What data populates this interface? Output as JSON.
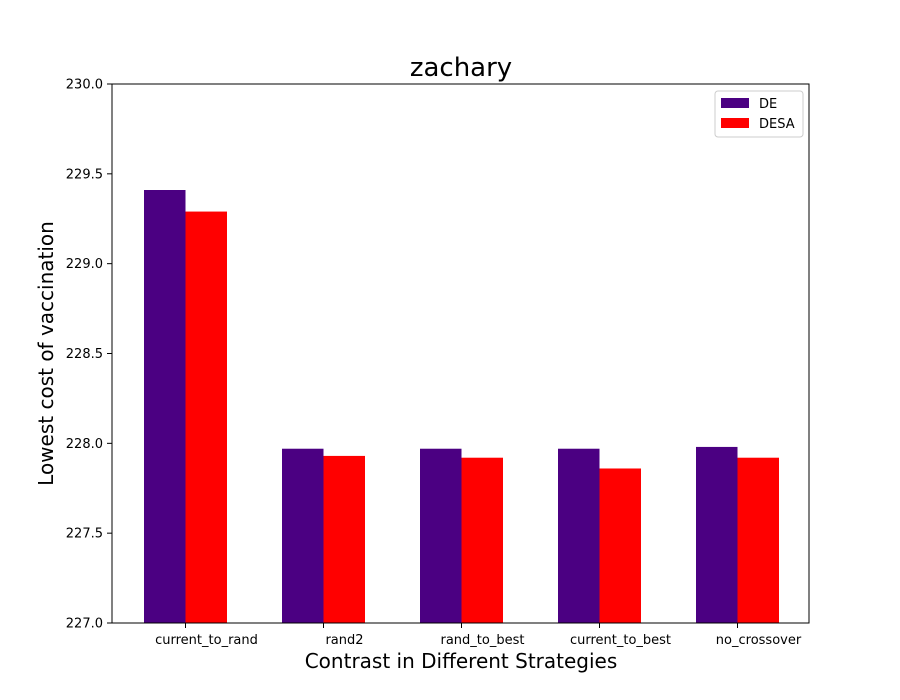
{
  "chart_data": {
    "type": "bar",
    "title": "zachary",
    "xlabel": "Contrast in Different Strategies",
    "ylabel": "Lowest cost of vaccination",
    "categories": [
      "current_to_rand",
      "rand2",
      "rand_to_best",
      "current_to_best",
      "no_crossover"
    ],
    "ylim": [
      227.0,
      230.0
    ],
    "yticks": [
      "227.0",
      "227.5",
      "228.0",
      "228.5",
      "229.0",
      "229.5",
      "230.0"
    ],
    "series": [
      {
        "name": "DE",
        "color": "#4b0082",
        "values": [
          229.41,
          227.97,
          227.97,
          227.97,
          227.98
        ]
      },
      {
        "name": "DESA",
        "color": "#ff0000",
        "values": [
          229.29,
          227.93,
          227.92,
          227.86,
          227.92
        ]
      }
    ],
    "legend": "top-right",
    "grid": false
  }
}
